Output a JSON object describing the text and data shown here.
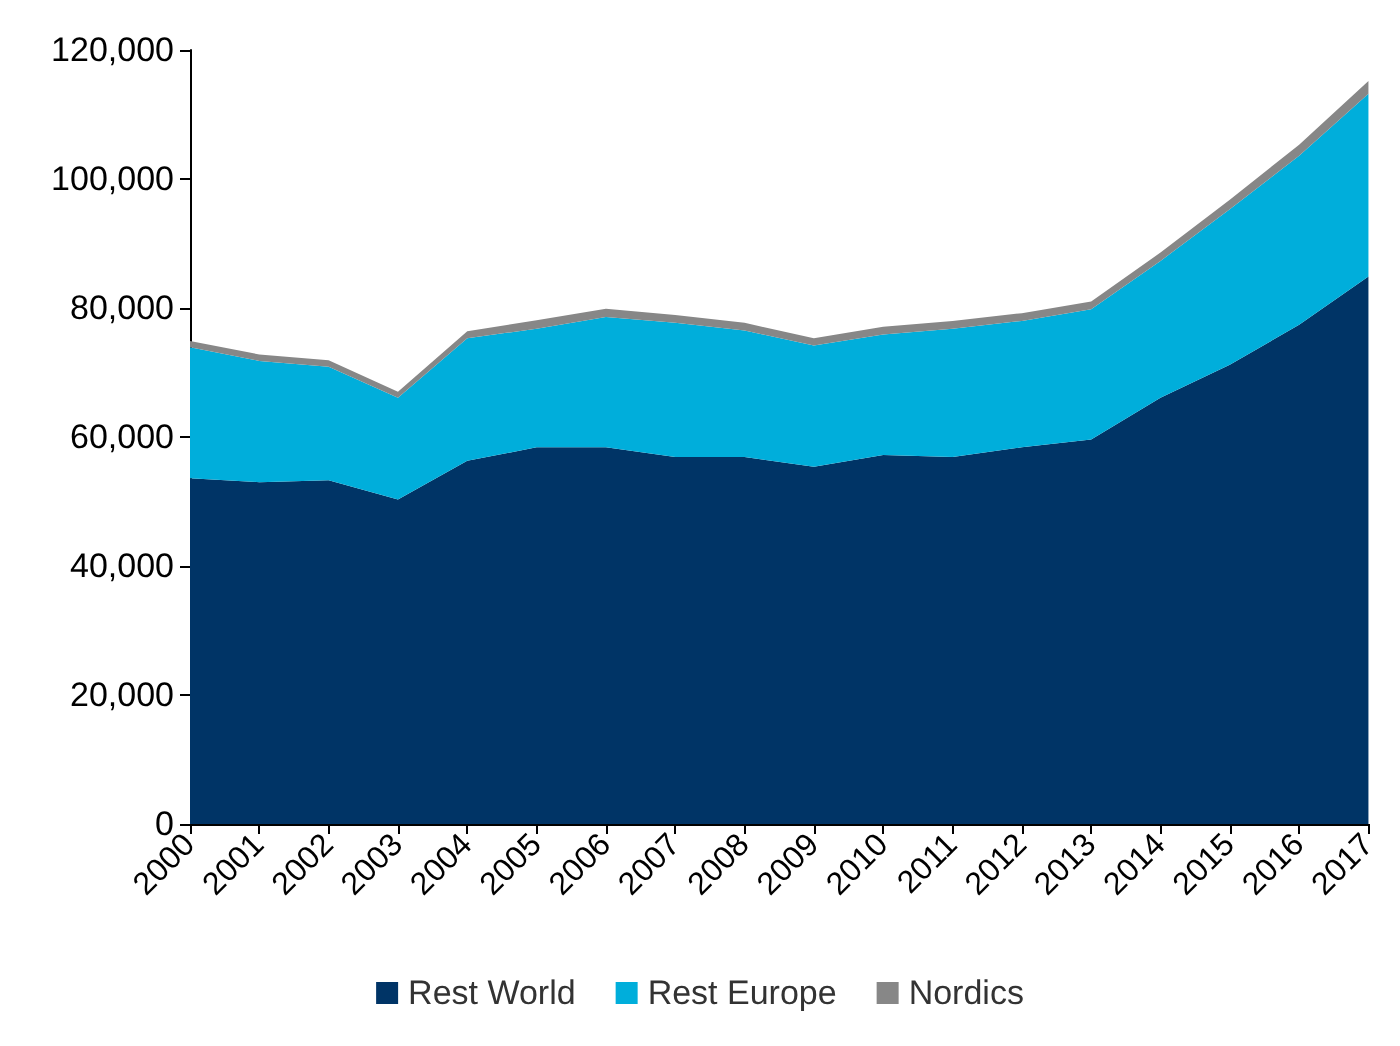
{
  "chart_data": {
    "type": "area",
    "stacked": true,
    "categories": [
      "2000",
      "2001",
      "2002",
      "2003",
      "2004",
      "2005",
      "2006",
      "2007",
      "2008",
      "2009",
      "2010",
      "2011",
      "2012",
      "2013",
      "2014",
      "2015",
      "2016",
      "2017"
    ],
    "series": [
      {
        "name": "Rest World",
        "color": "#003466",
        "values": [
          53600,
          53000,
          53300,
          50300,
          56300,
          58400,
          58400,
          56900,
          56900,
          55400,
          57200,
          56900,
          58400,
          59600,
          66100,
          71200,
          77400,
          84900
        ]
      },
      {
        "name": "Rest Europe",
        "color": "#00aedb",
        "values": [
          20300,
          18800,
          17600,
          15800,
          19000,
          18400,
          20200,
          20800,
          19600,
          18800,
          18700,
          19900,
          19600,
          20200,
          21200,
          24100,
          26200,
          28300
        ]
      },
      {
        "name": "Nordics",
        "color": "#878787",
        "values": [
          1000,
          1000,
          1000,
          900,
          1100,
          1300,
          1300,
          1200,
          1200,
          1100,
          1200,
          1200,
          1200,
          1200,
          1300,
          1500,
          1700,
          2000
        ]
      }
    ],
    "ylim": [
      0,
      120000
    ],
    "yticks": [
      0,
      {
        "value": 20000,
        "label": "20,000"
      },
      {
        "value": 40000,
        "label": "40,000"
      },
      {
        "value": 60000,
        "label": "60,000"
      },
      {
        "value": 80000,
        "label": "80,000"
      },
      {
        "value": 100000,
        "label": "100,000"
      },
      {
        "value": 120000,
        "label": "120,000"
      }
    ],
    "grid": false,
    "legend": "bottom"
  }
}
